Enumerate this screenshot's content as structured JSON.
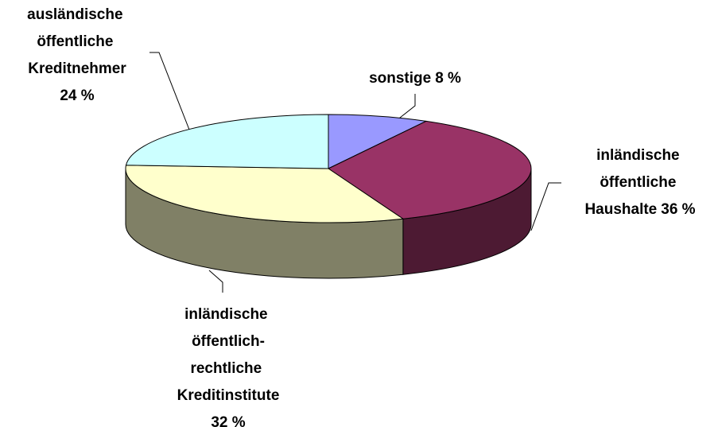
{
  "chart_data": {
    "type": "pie3d",
    "categories": [
      "sonstige",
      "inländische öffentliche Haushalte",
      "inländische öffentlich-rechtliche Kreditinstitute",
      "ausländische öffentliche Kreditnehmer"
    ],
    "values": [
      8,
      36,
      32,
      24
    ],
    "value_labels": [
      "8 %",
      "36 %",
      "32 %",
      "24 %"
    ],
    "colors": [
      "#9999ff",
      "#993366",
      "#ffffcc",
      "#ccffff"
    ],
    "side_colors": [
      "#4d4d80",
      "#4d1a33",
      "#808066",
      "#668080"
    ]
  }
}
